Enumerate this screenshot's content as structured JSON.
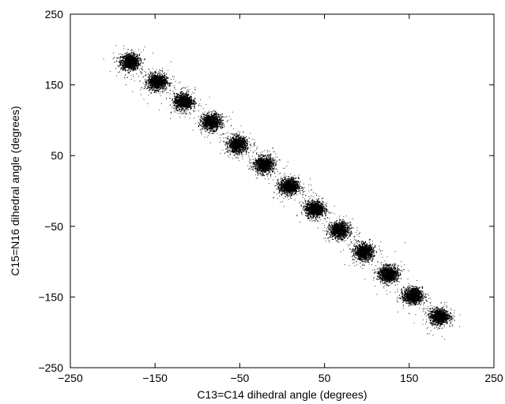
{
  "chart_data": {
    "type": "scatter",
    "xlabel": "C13=C14 dihedral angle (degrees)",
    "ylabel": "C15=N16 dihedral angle (degrees)",
    "xlim": [
      -250,
      250
    ],
    "ylim": [
      -250,
      250
    ],
    "x_ticks": [
      -250,
      -150,
      -50,
      50,
      150,
      250
    ],
    "y_ticks": [
      -250,
      -150,
      -50,
      50,
      150,
      250
    ],
    "x_tick_labels": [
      "−250",
      "−150",
      "−50",
      "50",
      "150",
      "250"
    ],
    "y_tick_labels": [
      "−250",
      "−150",
      "−50",
      "50",
      "150",
      "250"
    ],
    "grid": false,
    "legend": "none",
    "point_color": "#000000",
    "clusters": [
      {
        "x": -180,
        "y": 183
      },
      {
        "x": -148,
        "y": 155
      },
      {
        "x": -117,
        "y": 127
      },
      {
        "x": -84,
        "y": 98
      },
      {
        "x": -53,
        "y": 66
      },
      {
        "x": -22,
        "y": 38
      },
      {
        "x": 8,
        "y": 7
      },
      {
        "x": 38,
        "y": -25
      },
      {
        "x": 67,
        "y": -55
      },
      {
        "x": 96,
        "y": -86
      },
      {
        "x": 125,
        "y": -117
      },
      {
        "x": 154,
        "y": -148
      },
      {
        "x": 185,
        "y": -177
      }
    ],
    "cluster_spread_degrees": 12
  }
}
